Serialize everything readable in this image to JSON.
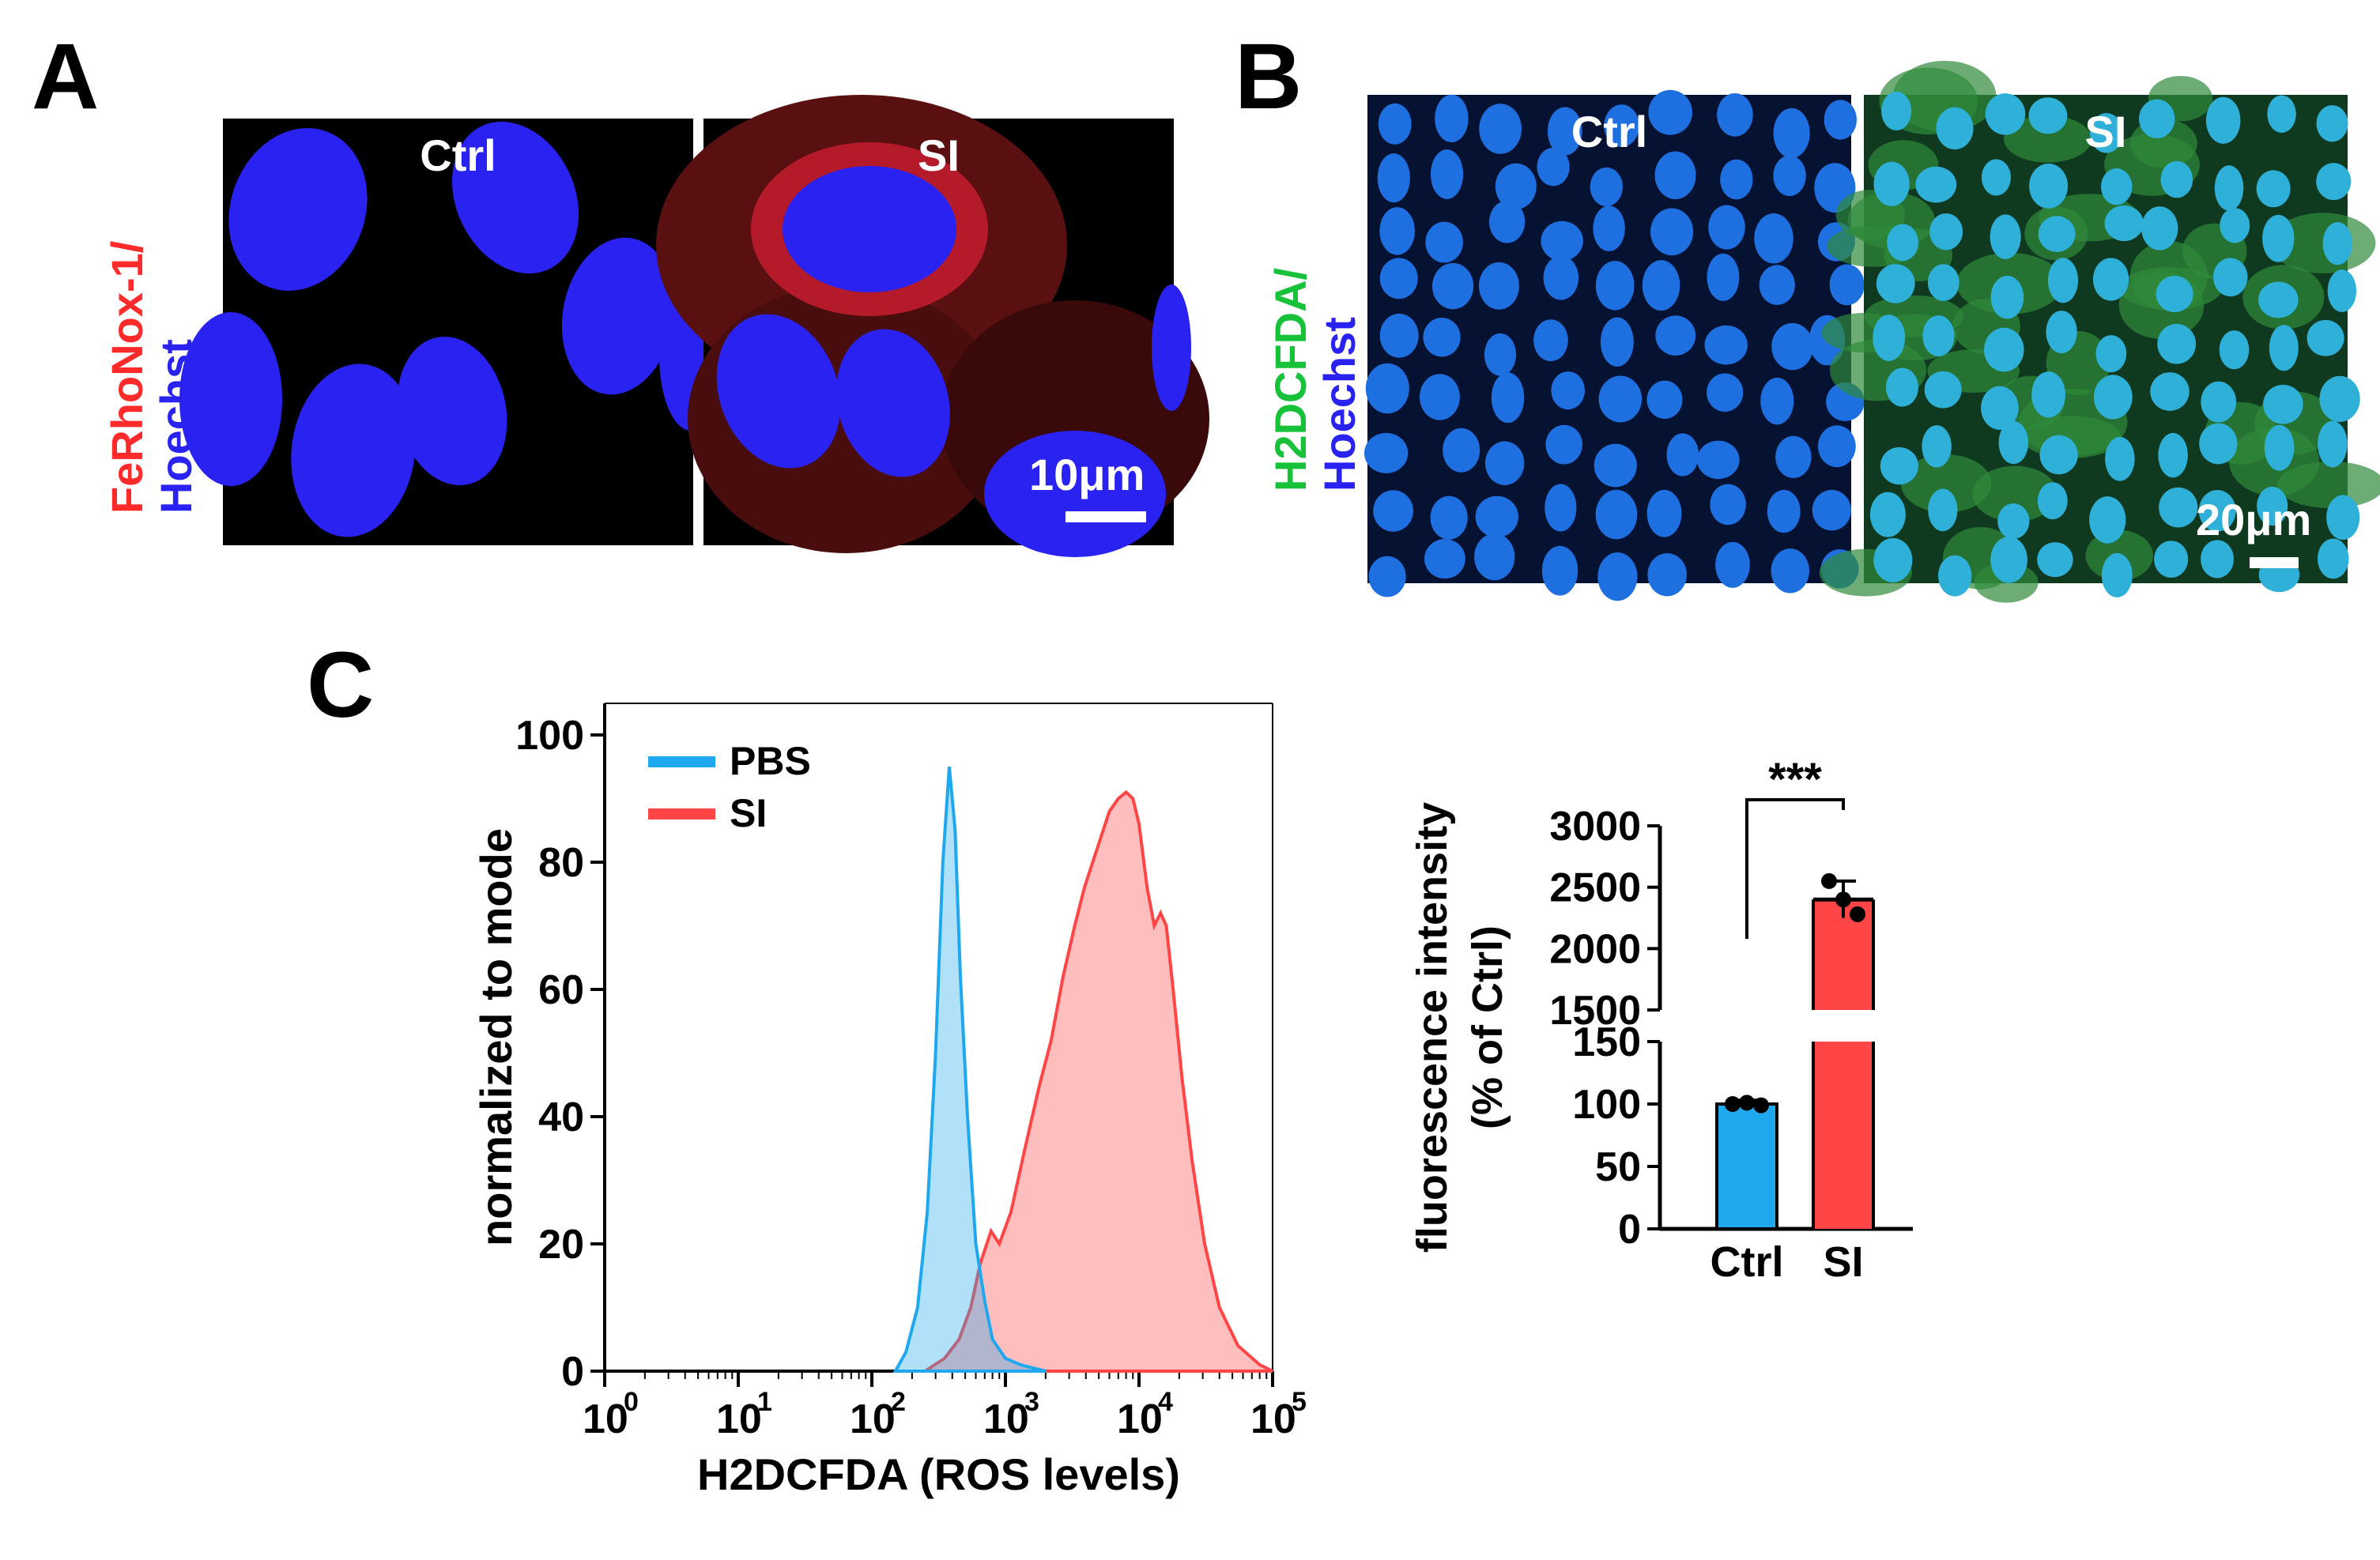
{
  "colors": {
    "red": "#ff2a2a",
    "blue": "#2a22f0",
    "green": "#17c23a",
    "pbs": "#20a8ee",
    "si": "#ff4545"
  },
  "panelA": {
    "letter": "A",
    "ylabel_top": "FeRhoNox-1/",
    "ylabel_bottom": "Hoechst",
    "images": [
      "Ctrl",
      "SI"
    ],
    "scale": "10μm"
  },
  "panelB": {
    "letter": "B",
    "ylabel_top": "H2DCFDA/",
    "ylabel_bottom": "Hoechst",
    "images": [
      "Ctrl",
      "SI"
    ],
    "scale": "20μm"
  },
  "panelC": {
    "letter": "C"
  },
  "chart_data": [
    {
      "type": "area",
      "xlabel": "H2DCFDA (ROS levels)",
      "ylabel": "normalized to mode",
      "xscale": "log",
      "xlim": [
        1,
        100000
      ],
      "ylim": [
        0,
        100
      ],
      "x_ticks": [
        "10",
        "10",
        "10",
        "10",
        "10",
        "10"
      ],
      "x_tick_exp": [
        "0",
        "1",
        "2",
        "3",
        "4",
        "5"
      ],
      "y_ticks": [
        "0",
        "20",
        "40",
        "60",
        "80",
        "100"
      ],
      "legend": "top-left",
      "series": [
        {
          "name": "PBS",
          "color": "#20a8ee",
          "x": [
            150,
            180,
            220,
            260,
            300,
            340,
            380,
            420,
            460,
            520,
            600,
            700,
            800,
            1000,
            1300,
            1600,
            2000
          ],
          "y": [
            0,
            3,
            10,
            25,
            50,
            80,
            95,
            85,
            62,
            40,
            20,
            11,
            5,
            2,
            1,
            0.5,
            0
          ]
        },
        {
          "name": "SI",
          "color": "#ff4545",
          "x": [
            250,
            350,
            450,
            550,
            650,
            780,
            900,
            1100,
            1400,
            1800,
            2200,
            2700,
            3300,
            3900,
            4500,
            5200,
            6000,
            7000,
            8000,
            9000,
            10000,
            11500,
            13000,
            14500,
            16000,
            18000,
            21000,
            25000,
            31000,
            40000,
            55000,
            80000,
            100000
          ],
          "y": [
            0,
            2,
            5,
            10,
            17,
            22,
            20,
            25,
            35,
            45,
            52,
            62,
            70,
            76,
            80,
            84,
            88,
            90,
            91,
            90,
            86,
            76,
            70,
            72,
            70,
            60,
            46,
            33,
            20,
            10,
            4,
            1,
            0
          ]
        }
      ]
    },
    {
      "type": "bar",
      "categories": [
        "Ctrl",
        "SI"
      ],
      "ylabel": "fluorescence intensity (% of Ctrl)",
      "yaxis_break": [
        150,
        1500
      ],
      "y_ticks_lower": [
        "0",
        "50",
        "100",
        "150"
      ],
      "y_ticks_upper": [
        "1500",
        "2000",
        "2500",
        "3000"
      ],
      "values": [
        100,
        2400
      ],
      "errors": [
        3,
        150
      ],
      "points": [
        [
          100,
          101,
          99
        ],
        [
          2550,
          2400,
          2280
        ]
      ],
      "colors": [
        "#20a8ee",
        "#ff4545"
      ],
      "significance": "***"
    }
  ]
}
